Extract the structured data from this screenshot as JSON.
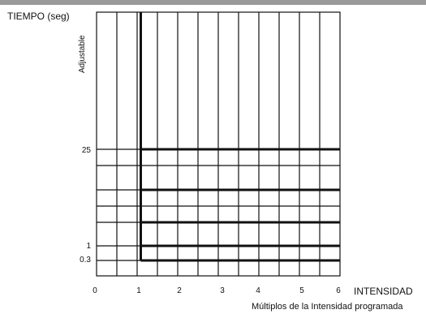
{
  "y_axis": {
    "title": "TIEMPO (seg)",
    "adjustable_label": "Adjustable",
    "tick_labels": [
      "25",
      "1",
      "0.3"
    ]
  },
  "x_axis": {
    "title": "INTENSIDAD",
    "subtitle": "Múltiplos de la Intensidad programada",
    "tick_labels": [
      "0",
      "1",
      "2",
      "3",
      "4",
      "5",
      "6"
    ]
  },
  "colors": {
    "grid": "#111111",
    "header_bar": "#9a9a9a"
  }
}
